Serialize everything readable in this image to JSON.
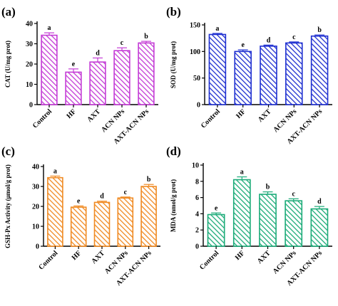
{
  "chart_data": [
    {
      "panel_label": "(a)",
      "type": "bar",
      "categories": [
        "Control",
        "HF",
        "AXT",
        "ACN NPs",
        "AXT-ACN NPs"
      ],
      "values": [
        34.2,
        16.0,
        21.0,
        26.6,
        30.4
      ],
      "errors": [
        1.2,
        1.6,
        2.0,
        1.4,
        0.8
      ],
      "significance": [
        "a",
        "e",
        "d",
        "c",
        "b"
      ],
      "ylabel": "CAT (U/mg prot)",
      "ylim": [
        0,
        40
      ],
      "yticks": [
        0,
        10,
        20,
        30,
        40
      ],
      "color": "#c43bd6"
    },
    {
      "panel_label": "(b)",
      "type": "bar",
      "categories": [
        "Control",
        "HF",
        "AXT",
        "ACN NPs",
        "AXT-ACN NPs"
      ],
      "values": [
        132,
        100,
        110,
        116,
        129
      ],
      "errors": [
        2,
        3,
        2,
        2,
        2
      ],
      "significance": [
        "a",
        "e",
        "d",
        "c",
        "b"
      ],
      "ylabel": "SOD (U/mg prot)",
      "ylim": [
        0,
        150
      ],
      "yticks": [
        0,
        50,
        100,
        150
      ],
      "color": "#1e2fd0"
    },
    {
      "panel_label": "(c)",
      "type": "bar",
      "categories": [
        "Control",
        "HF",
        "AXT",
        "ACN NPs",
        "AXT-ACN NPs"
      ],
      "values": [
        34.4,
        19.6,
        22.0,
        24.2,
        30.0
      ],
      "errors": [
        0.8,
        0.6,
        0.6,
        0.5,
        1.0
      ],
      "significance": [
        "a",
        "e",
        "d",
        "c",
        "b"
      ],
      "ylabel": "GSH-Px Activity (μmol/g prot)",
      "ylim": [
        0,
        40
      ],
      "yticks": [
        0,
        10,
        20,
        30,
        40
      ],
      "color": "#f08a22"
    },
    {
      "panel_label": "(d)",
      "type": "bar",
      "categories": [
        "Control",
        "HF",
        "AXT",
        "ACN NPs",
        "AXT-ACN NPs"
      ],
      "values": [
        3.9,
        8.2,
        6.4,
        5.6,
        4.6
      ],
      "errors": [
        0.2,
        0.35,
        0.3,
        0.25,
        0.3
      ],
      "significance": [
        "e",
        "a",
        "b",
        "c",
        "d"
      ],
      "ylabel": "MDA (nmol/g prot)",
      "ylim": [
        0,
        10
      ],
      "yticks": [
        0,
        2,
        4,
        6,
        8,
        10
      ],
      "color": "#1bab78"
    }
  ]
}
